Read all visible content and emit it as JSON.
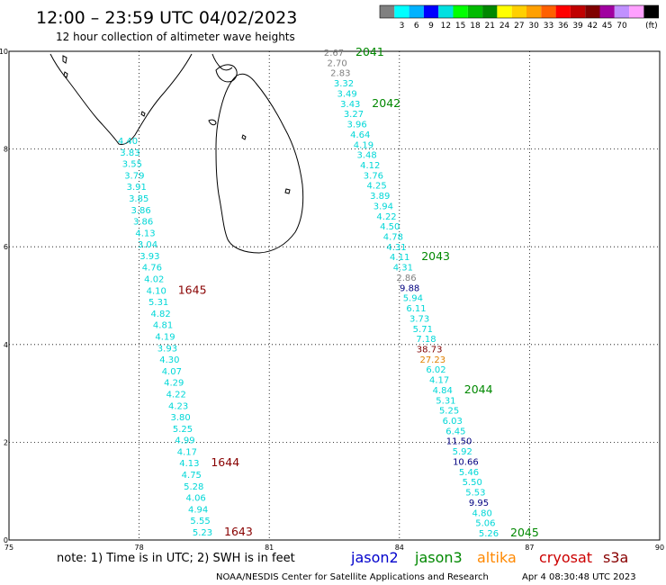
{
  "header": {
    "title": "12:00 – 23:59 UTC 04/02/2023",
    "subtitle": "12 hour collection of altimeter wave heights"
  },
  "colorbar": {
    "unit": "(ft)",
    "colors": [
      "#808080",
      "#00ffff",
      "#00b2ff",
      "#0000ff",
      "#00e0e0",
      "#00ff00",
      "#00bb00",
      "#008800",
      "#ffff00",
      "#ffd000",
      "#ffa000",
      "#ff6000",
      "#ff0000",
      "#c00000",
      "#800000",
      "#a000a0",
      "#c090ff",
      "#ffa0ff",
      "#000000"
    ],
    "labels": [
      "3",
      "6",
      "9",
      "12",
      "15",
      "18",
      "21",
      "24",
      "27",
      "30",
      "33",
      "36",
      "39",
      "42",
      "45",
      "70"
    ]
  },
  "map": {
    "x_ticks": [
      "75",
      "78",
      "81",
      "84",
      "87",
      "90"
    ],
    "y_ticks": [
      "0",
      "2",
      "4",
      "6",
      "8",
      "10"
    ],
    "lon_range": [
      75,
      90
    ],
    "lat_range": [
      0,
      10
    ]
  },
  "colors": {
    "jason2": "#0000cc",
    "jason3": "#008800",
    "altika": "#ff8800",
    "cryosat": "#cc0000",
    "s3a": "#880000",
    "cyan": "#00d7d7",
    "grey": "#808080",
    "navy": "#000080",
    "maroon": "#800000",
    "orange": "#e08000"
  },
  "west_track": {
    "values": [
      "4.40",
      "3.83",
      "3.55",
      "3.79",
      "3.91",
      "3.85",
      "3.86",
      "3.86",
      "4.13",
      "3.04",
      "3.93",
      "4.76",
      "4.02",
      "4.10",
      "5.31",
      "4.82",
      "4.81",
      "4.19",
      "3.93",
      "4.30",
      "4.07",
      "4.29",
      "4.22",
      "4.23",
      "3.80",
      "5.25",
      "4.99",
      "4.17",
      "4.13",
      "4.75",
      "5.28",
      "4.06",
      "4.94",
      "5.55",
      "5.23"
    ],
    "times": [
      {
        "text": "1645",
        "row": 13
      },
      {
        "text": "1644",
        "row": 28
      },
      {
        "text": "1643",
        "row": 34
      }
    ]
  },
  "east_track": {
    "values": [
      {
        "v": "2.67",
        "c": "grey"
      },
      {
        "v": "2.70",
        "c": "grey"
      },
      {
        "v": "2.83",
        "c": "grey"
      },
      {
        "v": "3.32",
        "c": "cyan"
      },
      {
        "v": "3.49",
        "c": "cyan"
      },
      {
        "v": "3.43",
        "c": "cyan"
      },
      {
        "v": "3.27",
        "c": "cyan"
      },
      {
        "v": "3.96",
        "c": "cyan"
      },
      {
        "v": "4.64",
        "c": "cyan"
      },
      {
        "v": "4.19",
        "c": "cyan"
      },
      {
        "v": "3.48",
        "c": "cyan"
      },
      {
        "v": "4.12",
        "c": "cyan"
      },
      {
        "v": "3.76",
        "c": "cyan"
      },
      {
        "v": "4.25",
        "c": "cyan"
      },
      {
        "v": "3.89",
        "c": "cyan"
      },
      {
        "v": "3.94",
        "c": "cyan"
      },
      {
        "v": "4.22",
        "c": "cyan"
      },
      {
        "v": "4.50",
        "c": "cyan"
      },
      {
        "v": "4.78",
        "c": "cyan"
      },
      {
        "v": "4.31",
        "c": "cyan"
      },
      {
        "v": "4.11",
        "c": "cyan"
      },
      {
        "v": "4.31",
        "c": "cyan"
      },
      {
        "v": "2.86",
        "c": "grey"
      },
      {
        "v": "9.88",
        "c": "navy"
      },
      {
        "v": "5.94",
        "c": "cyan"
      },
      {
        "v": "6.11",
        "c": "cyan"
      },
      {
        "v": "3.73",
        "c": "cyan"
      },
      {
        "v": "5.71",
        "c": "cyan"
      },
      {
        "v": "7.18",
        "c": "cyan"
      },
      {
        "v": "38.73",
        "c": "maroon"
      },
      {
        "v": "27.23",
        "c": "orange"
      },
      {
        "v": "6.02",
        "c": "cyan"
      },
      {
        "v": "4.17",
        "c": "cyan"
      },
      {
        "v": "4.84",
        "c": "cyan"
      },
      {
        "v": "5.31",
        "c": "cyan"
      },
      {
        "v": "5.25",
        "c": "cyan"
      },
      {
        "v": "6.03",
        "c": "cyan"
      },
      {
        "v": "6.45",
        "c": "cyan"
      },
      {
        "v": "11.50",
        "c": "navy"
      },
      {
        "v": "5.92",
        "c": "cyan"
      },
      {
        "v": "10.66",
        "c": "navy"
      },
      {
        "v": "5.46",
        "c": "cyan"
      },
      {
        "v": "5.50",
        "c": "cyan"
      },
      {
        "v": "5.53",
        "c": "cyan"
      },
      {
        "v": "9.95",
        "c": "navy"
      },
      {
        "v": "4.80",
        "c": "cyan"
      },
      {
        "v": "5.06",
        "c": "cyan"
      },
      {
        "v": "5.26",
        "c": "cyan"
      }
    ],
    "times": [
      {
        "text": "2041",
        "row": 0
      },
      {
        "text": "2042",
        "row": 5
      },
      {
        "text": "2043",
        "row": 20
      },
      {
        "text": "2044",
        "row": 33
      },
      {
        "text": "2045",
        "row": 47
      }
    ]
  },
  "footer": {
    "note": "note: 1) Time is in UTC; 2) SWH is in feet",
    "satellites": [
      {
        "name": "jason2",
        "color": "jason2"
      },
      {
        "name": "jason3",
        "color": "jason3"
      },
      {
        "name": "altika",
        "color": "altika"
      },
      {
        "name": "cryosat",
        "color": "cryosat"
      },
      {
        "name": "s3a",
        "color": "s3a"
      }
    ],
    "credit": "NOAA/NESDIS Center for Satellite Applications and Research",
    "timestamp": "Apr  4 08:30:48 UTC 2023"
  }
}
